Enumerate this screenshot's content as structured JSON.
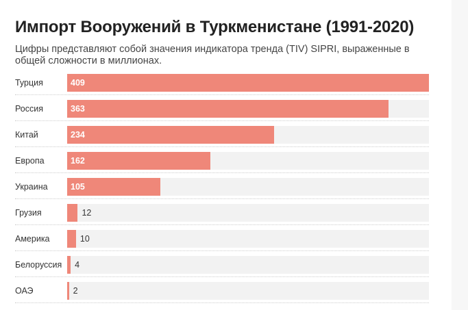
{
  "title": "Импорт Вооружений в Туркменистане (1991-2020)",
  "subtitle": "Цифры представляют собой значения индикатора тренда (TIV) SIPRI, выраженные в общей сложности в миллионах.",
  "colors": {
    "bar": "#ef8779",
    "track": "#f2f2f2"
  },
  "chart_data": {
    "type": "bar",
    "orientation": "horizontal",
    "title": "Импорт Вооружений в Туркменистане (1991-2020)",
    "categories": [
      "Турция",
      "Россия",
      "Китай",
      "Европа",
      "Украина",
      "Грузия",
      "Америка",
      "Белоруссия",
      "ОАЭ"
    ],
    "values": [
      409,
      363,
      234,
      162,
      105,
      12,
      10,
      4,
      2
    ],
    "value_labels": [
      "409",
      "363",
      "234",
      "162",
      "105",
      "12",
      "10",
      "4",
      "2"
    ],
    "xlim": [
      0,
      409
    ],
    "grid": false
  }
}
